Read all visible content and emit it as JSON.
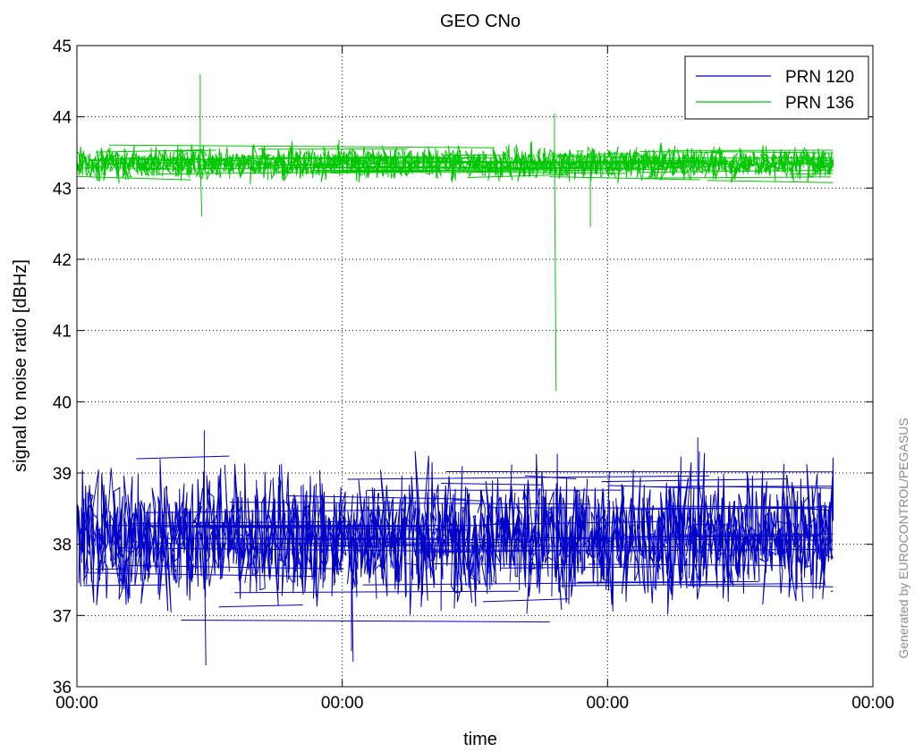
{
  "chart_data": {
    "type": "line",
    "title": "GEO CNo",
    "xlabel": "time",
    "ylabel": "signal to noise ratio [dBHz]",
    "x_tick_labels": [
      "00:00",
      "00:00",
      "00:00",
      "00:00"
    ],
    "y_ticks": [
      36,
      37,
      38,
      39,
      40,
      41,
      42,
      43,
      44,
      45
    ],
    "ylim": [
      36,
      45
    ],
    "grid": true,
    "legend_position": "top-right",
    "series": [
      {
        "name": "PRN 120",
        "color": "#0000c8",
        "band": {
          "start_fraction": 0.0,
          "end_fraction": 0.95,
          "typical_min": 36.9,
          "typical_max": 39.2,
          "mean": 38.1
        },
        "spikes": [
          {
            "x_fraction": 0.16,
            "values": [
              39.6,
              36.3
            ]
          },
          {
            "x_fraction": 0.345,
            "values": [
              36.5,
              36.35
            ]
          },
          {
            "x_fraction": 0.78,
            "values": [
              39.5,
              39.3
            ]
          }
        ]
      },
      {
        "name": "PRN 136",
        "color": "#00c800",
        "band": {
          "start_fraction": 0.0,
          "end_fraction": 0.95,
          "typical_min": 43.05,
          "typical_max": 43.65,
          "mean": 43.35
        },
        "spikes": [
          {
            "x_fraction": 0.155,
            "values": [
              44.6,
              42.6
            ]
          },
          {
            "x_fraction": 0.6,
            "values": [
              44.05,
              40.15
            ]
          },
          {
            "x_fraction": 0.645,
            "values": [
              42.45
            ]
          }
        ]
      }
    ]
  },
  "watermark": "Generated by EUROCONTROL/PEGASUS"
}
